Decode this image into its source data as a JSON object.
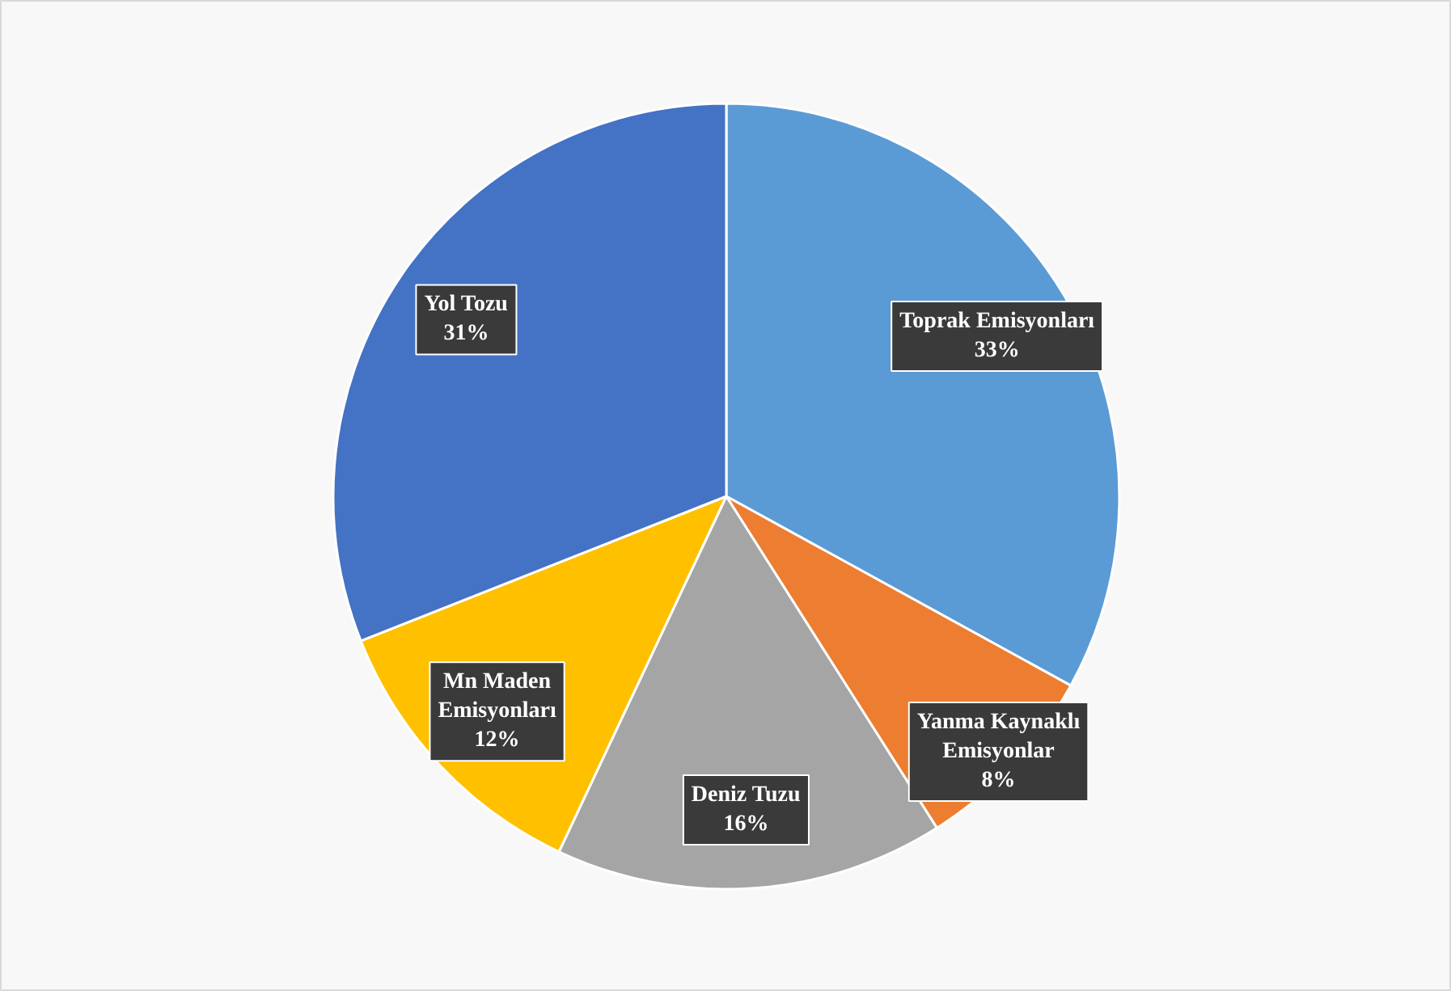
{
  "chart_data": {
    "type": "pie",
    "categories": [
      "Toprak Emisyonları",
      "Yanma Kaynaklı Emisyonlar",
      "Deniz Tuzu",
      "Mn Maden Emisyonları",
      "Yol Tozu"
    ],
    "values": [
      33,
      8,
      16,
      12,
      31
    ],
    "value_labels": [
      "33%",
      "8%",
      "16%",
      "12%",
      "31%"
    ],
    "colors": [
      "#5b9bd5",
      "#ed7d31",
      "#a5a5a5",
      "#ffc000",
      "#4472c4"
    ]
  }
}
